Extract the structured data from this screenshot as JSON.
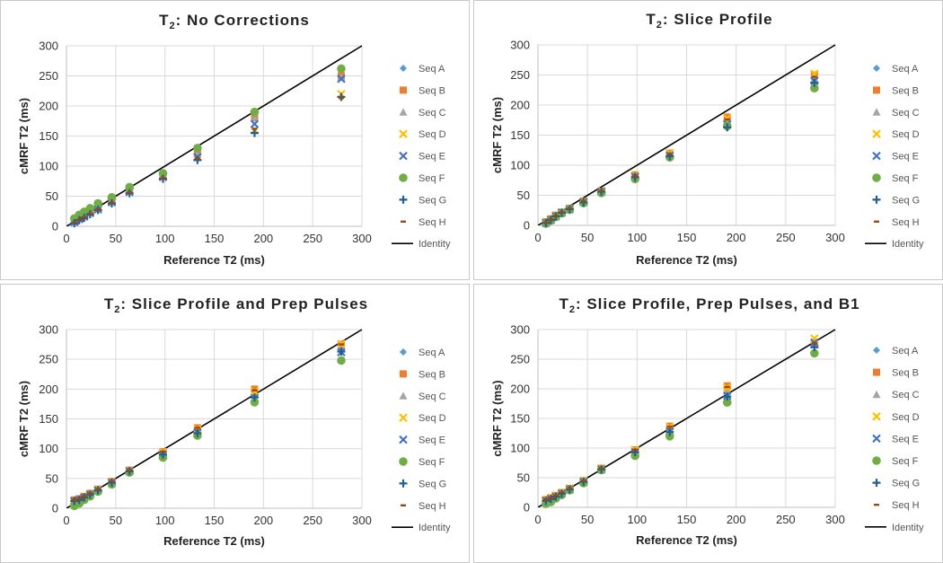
{
  "colors": {
    "Seq A": "#5b9bd5",
    "Seq B": "#ed7d31",
    "Seq C": "#a5a5a5",
    "Seq D": "#ffc000",
    "Seq E": "#4472c4",
    "Seq F": "#70ad47",
    "Seq G": "#255e91",
    "Seq H": "#9e480e",
    "Identity": "#000000"
  },
  "markers": {
    "Seq A": "diamond",
    "Seq B": "square",
    "Seq C": "triangle",
    "Seq D": "x",
    "Seq E": "x",
    "Seq F": "circle",
    "Seq G": "plus",
    "Seq H": "dash"
  },
  "chart_data": [
    {
      "type": "scatter",
      "title_main": "T",
      "title_sub": "2",
      "title_rest": ": No Corrections",
      "xlabel": "Reference T2 (ms)",
      "ylabel": "cMRF T2 (ms)",
      "xlim": [
        0,
        300
      ],
      "ylim": [
        0,
        300
      ],
      "xticks": [
        0,
        50,
        100,
        150,
        200,
        250,
        300
      ],
      "yticks": [
        0,
        50,
        100,
        150,
        200,
        250,
        300
      ],
      "grid": true,
      "legend": [
        "Seq A",
        "Seq B",
        "Seq C",
        "Seq D",
        "Seq E",
        "Seq F",
        "Seq G",
        "Seq H",
        "Identity"
      ],
      "x": [
        8,
        13,
        18,
        24,
        32,
        46,
        64,
        98,
        133,
        191,
        279
      ],
      "series": [
        {
          "name": "Seq A",
          "values": [
            10,
            14,
            19,
            24,
            32,
            44,
            60,
            85,
            125,
            185,
            255
          ]
        },
        {
          "name": "Seq B",
          "values": [
            9,
            13,
            18,
            23,
            30,
            42,
            59,
            85,
            122,
            180,
            250
          ]
        },
        {
          "name": "Seq C",
          "values": [
            10,
            14,
            19,
            24,
            31,
            43,
            60,
            84,
            120,
            180,
            248
          ]
        },
        {
          "name": "Seq D",
          "values": [
            8,
            12,
            17,
            22,
            29,
            40,
            57,
            82,
            115,
            160,
            220
          ]
        },
        {
          "name": "Seq E",
          "values": [
            7,
            12,
            16,
            22,
            28,
            40,
            57,
            82,
            115,
            170,
            245
          ]
        },
        {
          "name": "Seq F",
          "values": [
            13,
            19,
            24,
            30,
            38,
            48,
            65,
            88,
            130,
            190,
            262
          ]
        },
        {
          "name": "Seq G",
          "values": [
            5,
            10,
            14,
            20,
            27,
            38,
            55,
            79,
            110,
            155,
            215
          ]
        },
        {
          "name": "Seq H",
          "values": [
            6,
            11,
            15,
            21,
            28,
            39,
            56,
            80,
            113,
            162,
            213
          ]
        }
      ]
    },
    {
      "type": "scatter",
      "title_main": "T",
      "title_sub": "2",
      "title_rest": ": Slice Profile",
      "xlabel": "Reference T2 (ms)",
      "ylabel": "cMRF T2 (ms)",
      "xlim": [
        0,
        300
      ],
      "ylim": [
        0,
        300
      ],
      "xticks": [
        0,
        50,
        100,
        150,
        200,
        250,
        300
      ],
      "yticks": [
        0,
        50,
        100,
        150,
        200,
        250,
        300
      ],
      "grid": true,
      "legend": [
        "Seq A",
        "Seq B",
        "Seq C",
        "Seq D",
        "Seq E",
        "Seq F",
        "Seq G",
        "Seq H",
        "Identity"
      ],
      "x": [
        8,
        13,
        18,
        24,
        32,
        46,
        64,
        98,
        133,
        191,
        279
      ],
      "series": [
        {
          "name": "Seq A",
          "values": [
            5,
            10,
            16,
            22,
            28,
            40,
            57,
            82,
            118,
            175,
            245
          ]
        },
        {
          "name": "Seq B",
          "values": [
            6,
            11,
            17,
            22,
            28,
            40,
            57,
            84,
            120,
            180,
            250
          ]
        },
        {
          "name": "Seq C",
          "values": [
            5,
            10,
            16,
            21,
            28,
            39,
            56,
            81,
            117,
            174,
            244
          ]
        },
        {
          "name": "Seq D",
          "values": [
            5,
            10,
            16,
            22,
            28,
            40,
            57,
            83,
            120,
            178,
            252
          ]
        },
        {
          "name": "Seq E",
          "values": [
            4,
            9,
            15,
            21,
            27,
            39,
            56,
            81,
            116,
            168,
            240
          ]
        },
        {
          "name": "Seq F",
          "values": [
            3,
            8,
            14,
            20,
            26,
            37,
            54,
            77,
            113,
            165,
            228
          ]
        },
        {
          "name": "Seq G",
          "values": [
            4,
            9,
            15,
            21,
            27,
            38,
            56,
            80,
            115,
            163,
            237
          ]
        },
        {
          "name": "Seq H",
          "values": [
            5,
            10,
            16,
            22,
            28,
            40,
            57,
            82,
            118,
            176,
            247
          ]
        }
      ]
    },
    {
      "type": "scatter",
      "title_main": "T",
      "title_sub": "2",
      "title_rest": ": Slice Profile and Prep Pulses",
      "xlabel": "Reference T2 (ms)",
      "ylabel": "cMRF T2 (ms)",
      "xlim": [
        0,
        300
      ],
      "ylim": [
        0,
        300
      ],
      "xticks": [
        0,
        50,
        100,
        150,
        200,
        250,
        300
      ],
      "yticks": [
        0,
        50,
        100,
        150,
        200,
        250,
        300
      ],
      "grid": true,
      "legend": [
        "Seq A",
        "Seq B",
        "Seq C",
        "Seq D",
        "Seq E",
        "Seq F",
        "Seq G",
        "Seq H",
        "Identity"
      ],
      "x": [
        8,
        13,
        18,
        24,
        32,
        46,
        64,
        98,
        133,
        191,
        279
      ],
      "series": [
        {
          "name": "Seq A",
          "values": [
            13,
            15,
            19,
            24,
            31,
            44,
            63,
            92,
            130,
            190,
            268
          ]
        },
        {
          "name": "Seq B",
          "values": [
            14,
            16,
            20,
            25,
            32,
            45,
            64,
            95,
            135,
            200,
            275
          ]
        },
        {
          "name": "Seq C",
          "values": [
            13,
            15,
            19,
            24,
            31,
            44,
            63,
            93,
            131,
            192,
            270
          ]
        },
        {
          "name": "Seq D",
          "values": [
            13,
            15,
            19,
            24,
            31,
            44,
            63,
            94,
            133,
            196,
            276
          ]
        },
        {
          "name": "Seq E",
          "values": [
            12,
            14,
            18,
            23,
            30,
            43,
            62,
            90,
            127,
            185,
            262
          ]
        },
        {
          "name": "Seq F",
          "values": [
            4,
            8,
            14,
            20,
            28,
            40,
            60,
            85,
            122,
            178,
            248
          ]
        },
        {
          "name": "Seq G",
          "values": [
            12,
            14,
            18,
            23,
            30,
            43,
            62,
            90,
            126,
            186,
            263
          ]
        },
        {
          "name": "Seq H",
          "values": [
            14,
            16,
            20,
            25,
            32,
            45,
            64,
            95,
            135,
            198,
            275
          ]
        }
      ]
    },
    {
      "type": "scatter",
      "title_main": "T",
      "title_sub": "2",
      "title_rest": ": Slice Profile, Prep Pulses, and B1",
      "xlabel": "Reference T2 (ms)",
      "ylabel": "cMRF T2 (ms)",
      "xlim": [
        0,
        300
      ],
      "ylim": [
        0,
        300
      ],
      "xticks": [
        0,
        50,
        100,
        150,
        200,
        250,
        300
      ],
      "yticks": [
        0,
        50,
        100,
        150,
        200,
        250,
        300
      ],
      "grid": true,
      "legend": [
        "Seq A",
        "Seq B",
        "Seq C",
        "Seq D",
        "Seq E",
        "Seq F",
        "Seq G",
        "Seq H",
        "Identity"
      ],
      "x": [
        8,
        13,
        18,
        24,
        32,
        46,
        64,
        98,
        133,
        191,
        279
      ],
      "series": [
        {
          "name": "Seq A",
          "values": [
            12,
            15,
            19,
            24,
            31,
            44,
            65,
            95,
            132,
            195,
            275
          ]
        },
        {
          "name": "Seq B",
          "values": [
            13,
            16,
            20,
            25,
            32,
            45,
            66,
            97,
            137,
            205,
            278
          ]
        },
        {
          "name": "Seq C",
          "values": [
            12,
            15,
            19,
            24,
            31,
            44,
            65,
            95,
            133,
            196,
            276
          ]
        },
        {
          "name": "Seq D",
          "values": [
            13,
            16,
            20,
            25,
            32,
            45,
            66,
            97,
            136,
            202,
            285
          ]
        },
        {
          "name": "Seq E",
          "values": [
            11,
            14,
            18,
            23,
            30,
            43,
            64,
            93,
            128,
            188,
            278
          ]
        },
        {
          "name": "Seq F",
          "values": [
            6,
            9,
            15,
            21,
            29,
            41,
            63,
            87,
            120,
            177,
            260
          ]
        },
        {
          "name": "Seq G",
          "values": [
            11,
            14,
            18,
            23,
            30,
            43,
            64,
            93,
            127,
            187,
            270
          ]
        },
        {
          "name": "Seq H",
          "values": [
            13,
            16,
            20,
            25,
            32,
            45,
            66,
            97,
            136,
            203,
            277
          ]
        }
      ]
    }
  ]
}
